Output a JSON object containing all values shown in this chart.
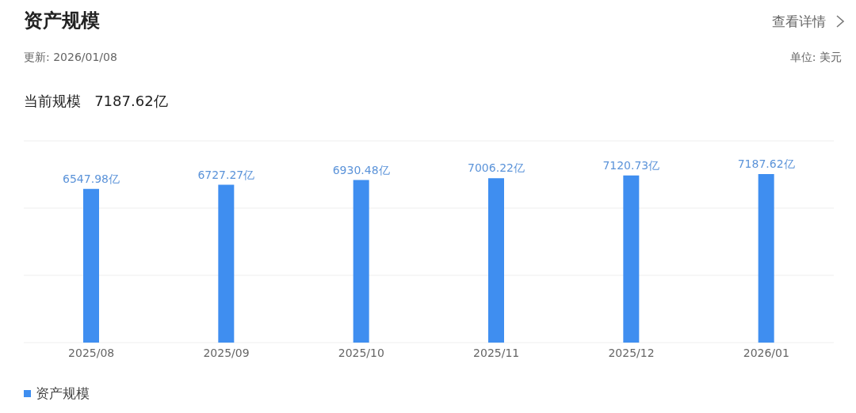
{
  "chart_data": {
    "type": "bar",
    "title": "资产规模",
    "annotations": [
      "查看详情",
      "更新: 2026/01/08",
      "单位: 美元",
      "当前规模   7187.62亿"
    ],
    "categories": [
      "2025/08",
      "2025/09",
      "2025/10",
      "2025/11",
      "2025/12",
      "2026/01"
    ],
    "series": [
      {
        "name": "资产规模",
        "color": "#3f8ef0",
        "values": [
          6547.98,
          6727.27,
          6930.48,
          7006.22,
          7120.73,
          7187.62
        ],
        "value_labels": [
          "6547.98亿",
          "6727.27亿",
          "6930.48亿",
          "7006.22亿",
          "7120.73亿",
          "7187.62亿"
        ]
      }
    ],
    "ylim": [
      0,
      8600
    ],
    "yticks": [
      {
        "value": 0,
        "label": null
      },
      {
        "value": 2867,
        "label": null
      },
      {
        "value": 5733,
        "label": null
      },
      {
        "value": 8600,
        "label": null
      }
    ],
    "grid": "y",
    "legend": "bottom left",
    "tick_labels": "x"
  }
}
